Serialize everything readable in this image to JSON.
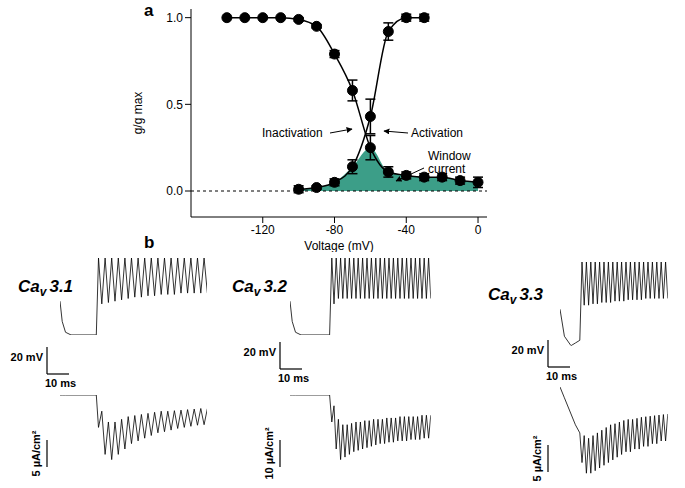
{
  "chart_data": [
    {
      "type": "line",
      "panel": "a",
      "x_label": "Voltage (mV)",
      "y_label": "g/g max",
      "xlim": [
        -160,
        5
      ],
      "xticks": [
        -120,
        -80,
        -40,
        0
      ],
      "ylim": [
        -0.15,
        1.05
      ],
      "yticks": [
        {
          "value": 0,
          "label": "0.0"
        },
        {
          "value": 0.5,
          "label": "0.5"
        },
        {
          "value": 1,
          "label": "1.0"
        }
      ],
      "zero_line": 0,
      "marker": "circle",
      "series": [
        {
          "name": "Inactivation",
          "color": "#000000",
          "x": [
            -140,
            -130,
            -120,
            -110,
            -100,
            -90,
            -80,
            -70,
            -60,
            -50,
            -40,
            -30,
            -20,
            -10,
            0
          ],
          "values": [
            1,
            1,
            1,
            1,
            0.99,
            0.95,
            0.79,
            0.58,
            0.25,
            0.11,
            0.09,
            0.08,
            0.08,
            0.06,
            0.05
          ],
          "errors": [
            0,
            0,
            0,
            0,
            0.01,
            0.01,
            0.02,
            0.06,
            0.07,
            0.03,
            0.02,
            0.02,
            0.02,
            0.02,
            0.03
          ]
        },
        {
          "name": "Activation",
          "color": "#000000",
          "x": [
            -100,
            -90,
            -80,
            -70,
            -60,
            -50,
            -40,
            -30
          ],
          "values": [
            0.01,
            0.02,
            0.05,
            0.14,
            0.43,
            0.92,
            1,
            1
          ],
          "errors": [
            0.02,
            0.01,
            0.02,
            0.04,
            0.1,
            0.05,
            0.02,
            0.02
          ]
        }
      ],
      "window": {
        "label": "Window current",
        "color": "#3c9e88"
      }
    },
    {
      "type": "line",
      "panel": "b",
      "title": "Cav3.1",
      "tick_labels": false,
      "x": [
        0,
        1,
        2.5,
        5,
        16.5,
        17.5,
        19,
        20.5,
        22,
        23.5,
        25,
        26.5,
        28,
        29.5,
        31,
        32.5,
        34,
        35.5,
        37,
        38.5,
        40,
        41.5,
        43,
        44.5,
        46,
        47.5,
        49,
        50.5,
        52,
        53.5,
        55,
        56.5,
        58,
        59.5,
        61,
        62.5,
        64,
        65.5,
        67
      ],
      "x_scale_bar": {
        "value": 10,
        "label": "10 ms"
      },
      "series": [
        {
          "color": "#000000",
          "scale_bar": {
            "value": 20,
            "label": "20 mV"
          },
          "values": [
            -60,
            -75,
            -83,
            -85,
            -85,
            -28,
            -62,
            -28,
            -61,
            -28,
            -60,
            -28,
            -59,
            -28,
            -58,
            -28,
            -57,
            -28,
            -57,
            -28,
            -56,
            -28,
            -56,
            -28,
            -55,
            -28,
            -55,
            -28,
            -55,
            -28,
            -54,
            -28,
            -54,
            -28,
            -54,
            -28,
            -54,
            -28,
            -54
          ]
        },
        {
          "color": "#000000",
          "scale_bar": {
            "value": 5,
            "label": "5 µA/cm²"
          },
          "values": [
            0,
            0,
            0,
            0,
            0,
            -6,
            -3,
            -11,
            -5,
            -12,
            -5,
            -11,
            -4.5,
            -10,
            -4,
            -9,
            -3.8,
            -8.5,
            -3.6,
            -8,
            -3.4,
            -7.5,
            -3.2,
            -7,
            -3,
            -6.8,
            -3,
            -6.5,
            -2.9,
            -6.2,
            -2.8,
            -6,
            -2.7,
            -5.8,
            -2.6,
            -5.6,
            -2.5,
            -5.5,
            -2.5
          ]
        }
      ]
    },
    {
      "type": "line",
      "title": "Cav3.2",
      "tick_labels": false,
      "x": [
        0,
        1,
        2.5,
        5,
        18,
        19,
        20,
        21,
        22,
        23,
        24,
        25,
        26,
        27,
        28,
        29,
        30,
        31,
        32,
        33,
        34,
        35,
        36,
        37,
        38,
        39,
        40,
        41,
        42,
        43,
        44,
        45,
        46,
        47,
        48,
        49,
        50,
        51,
        52,
        53,
        54,
        55,
        56,
        57,
        58,
        59,
        60,
        61,
        62,
        63,
        64
      ],
      "x_scale_bar": {
        "value": 10,
        "label": "10 ms"
      },
      "series": [
        {
          "color": "#000000",
          "scale_bar": {
            "value": 20,
            "label": "20 mV"
          },
          "values": [
            -60,
            -75,
            -83,
            -85,
            -85,
            -28,
            -62,
            -28,
            -58,
            -28,
            -58,
            -28,
            -58,
            -28,
            -58,
            -28,
            -58,
            -28,
            -58,
            -28,
            -58,
            -28,
            -58,
            -28,
            -58,
            -28,
            -58,
            -28,
            -58,
            -28,
            -58,
            -28,
            -58,
            -28,
            -58,
            -28,
            -58,
            -28,
            -58,
            -28,
            -58,
            -28,
            -58,
            -28,
            -58,
            -28,
            -58,
            -28,
            -58,
            -28,
            -58
          ]
        },
        {
          "color": "#000000",
          "scale_bar": {
            "value": 10,
            "label": "10 µA/cm²"
          },
          "values": [
            0,
            0,
            0,
            0,
            0,
            -10,
            -4,
            -20,
            -9,
            -24,
            -11,
            -23,
            -11,
            -22,
            -10.5,
            -21,
            -10,
            -20.5,
            -10,
            -20,
            -9.5,
            -19.5,
            -9.5,
            -19,
            -9,
            -18.5,
            -9,
            -18,
            -9,
            -18,
            -8.5,
            -17.5,
            -8.5,
            -17.5,
            -8.5,
            -17,
            -8,
            -17,
            -8,
            -17,
            -8,
            -16.5,
            -8,
            -16.5,
            -8,
            -16.5,
            -7.5,
            -16,
            -7.5,
            -16,
            -7.5
          ]
        }
      ]
    },
    {
      "type": "line",
      "title": "Cav3.3",
      "tick_labels": false,
      "x": [
        0,
        2,
        5,
        7,
        9,
        10,
        11,
        12,
        13,
        14,
        15,
        16,
        17,
        18,
        19,
        20,
        21,
        22,
        23,
        24,
        25,
        26,
        27,
        28,
        29,
        30,
        31,
        32,
        33,
        34,
        35,
        36,
        37,
        38,
        39,
        40,
        41,
        42,
        43,
        44,
        45,
        46,
        47,
        48,
        49
      ],
      "x_scale_bar": {
        "value": 10,
        "label": "10 ms"
      },
      "series": [
        {
          "color": "#000000",
          "scale_bar": {
            "value": 20,
            "label": "20 mV"
          },
          "values": [
            -65,
            -85,
            -92,
            -90,
            -88,
            -30,
            -62,
            -30,
            -62,
            -30,
            -61,
            -30,
            -61,
            -30,
            -60,
            -30,
            -60,
            -30,
            -60,
            -30,
            -59,
            -30,
            -59,
            -30,
            -59,
            -30,
            -58,
            -30,
            -58,
            -30,
            -58,
            -30,
            -58,
            -30,
            -57,
            -30,
            -57,
            -30,
            -57,
            -30,
            -57,
            -30,
            -57,
            -30,
            -57
          ]
        },
        {
          "color": "#000000",
          "scale_bar": {
            "value": 5,
            "label": "5 µA/cm²"
          },
          "values": [
            0,
            -2,
            -5,
            -7,
            -8.5,
            -14,
            -9,
            -16,
            -9.5,
            -16,
            -9,
            -15.5,
            -8.5,
            -15,
            -8,
            -14.5,
            -7.5,
            -14,
            -7,
            -13.5,
            -6.8,
            -13,
            -6.5,
            -12.5,
            -6.2,
            -12,
            -6,
            -12,
            -6,
            -11.5,
            -5.8,
            -11.5,
            -5.6,
            -11,
            -5.5,
            -11,
            -5.4,
            -10.5,
            -5.3,
            -10.5,
            -5.2,
            -10,
            -5.1,
            -10,
            -5
          ]
        }
      ]
    }
  ]
}
